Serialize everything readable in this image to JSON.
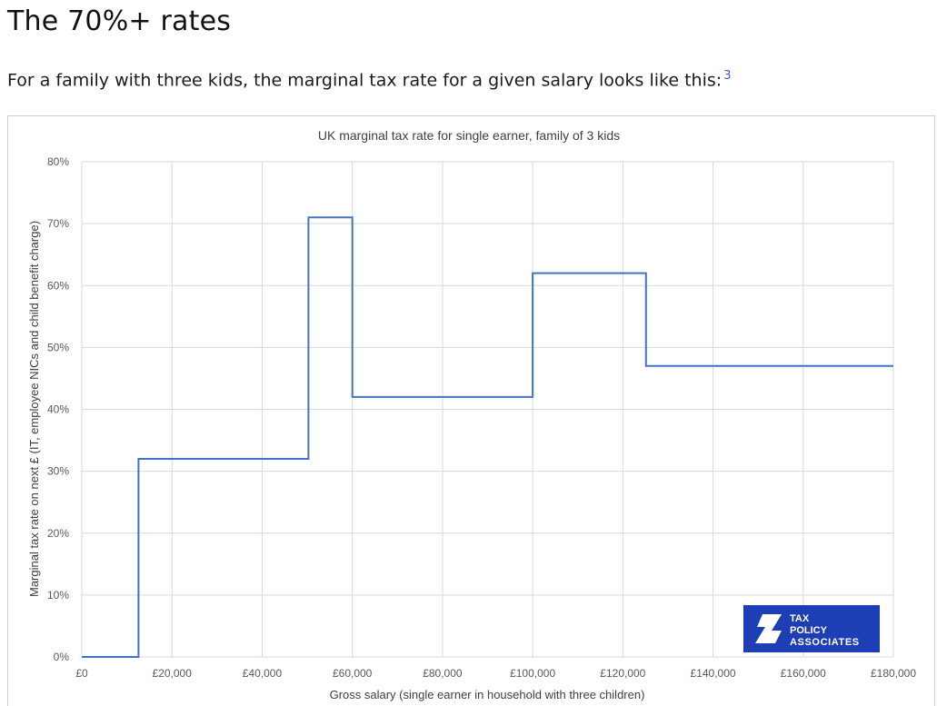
{
  "article": {
    "heading": "The 70%+ rates",
    "intro": "For a family with three kids, the marginal tax rate for a given salary looks like this:",
    "footnote": "3"
  },
  "logo": {
    "line1": "TAX",
    "line2": "POLICY",
    "line3": "ASSOCIATES",
    "color": "#1e3eb5"
  },
  "colors": {
    "line": "#4472c4",
    "grid": "#d9d9d9",
    "axis_text": "#595959"
  },
  "chart_data": {
    "type": "line",
    "title": "UK marginal tax rate for single earner, family of 3 kids",
    "xlabel": "Gross salary (single earner in household with three children)",
    "ylabel": "Marginal tax rate on next £ (IT, employee NICs and child benefit charge)",
    "xlim": [
      0,
      180000
    ],
    "ylim": [
      0,
      80
    ],
    "grid": true,
    "x_tick_labels": [
      "£0",
      "£20,000",
      "£40,000",
      "£60,000",
      "£80,000",
      "£100,000",
      "£120,000",
      "£140,000",
      "£160,000",
      "£180,000"
    ],
    "y_tick_labels": [
      "0%",
      "10%",
      "20%",
      "30%",
      "40%",
      "50%",
      "60%",
      "70%",
      "80%"
    ],
    "series": [
      {
        "x": [
          0,
          12570,
          12570,
          50270,
          50270,
          60000,
          60000,
          100000,
          100000,
          125140,
          125140,
          180000
        ],
        "y": [
          0,
          0,
          32,
          32,
          71,
          71,
          42,
          42,
          62,
          62,
          47,
          47
        ]
      }
    ]
  }
}
